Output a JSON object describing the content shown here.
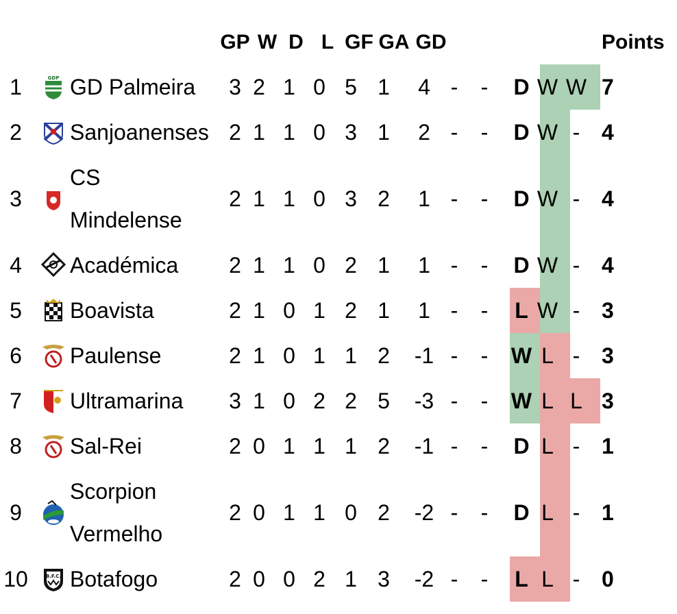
{
  "colors": {
    "win": "#acd1b4",
    "loss": "#eaa9a6"
  },
  "headers": {
    "gp": "GP",
    "w": "W",
    "d": "D",
    "l": "L",
    "gf": "GF",
    "ga": "GA",
    "gd": "GD",
    "points": "Points"
  },
  "rows": [
    {
      "pos": "1",
      "team": [
        "GD Palmeira"
      ],
      "logo": "gd-palmeira-crest-icon",
      "gp": "3",
      "w": "2",
      "d": "1",
      "l": "0",
      "gf": "5",
      "ga": "1",
      "gd": "4",
      "c1": "-",
      "c2": "-",
      "r1": "D",
      "r2": "W",
      "r3": "W",
      "pts": "7"
    },
    {
      "pos": "2",
      "team": [
        "Sanjoanenses"
      ],
      "logo": "sanjoanenses-crest-icon",
      "gp": "2",
      "w": "1",
      "d": "1",
      "l": "0",
      "gf": "3",
      "ga": "1",
      "gd": "2",
      "c1": "-",
      "c2": "-",
      "r1": "D",
      "r2": "W",
      "r3": "-",
      "pts": "4"
    },
    {
      "pos": "3",
      "team": [
        "CS",
        "Mindelense"
      ],
      "logo": "cs-mindelense-crest-icon",
      "gp": "2",
      "w": "1",
      "d": "1",
      "l": "0",
      "gf": "3",
      "ga": "2",
      "gd": "1",
      "c1": "-",
      "c2": "-",
      "r1": "D",
      "r2": "W",
      "r3": "-",
      "pts": "4"
    },
    {
      "pos": "4",
      "team": [
        "Académica"
      ],
      "logo": "academica-crest-icon",
      "gp": "2",
      "w": "1",
      "d": "1",
      "l": "0",
      "gf": "2",
      "ga": "1",
      "gd": "1",
      "c1": "-",
      "c2": "-",
      "r1": "D",
      "r2": "W",
      "r3": "-",
      "pts": "4"
    },
    {
      "pos": "5",
      "team": [
        "Boavista"
      ],
      "logo": "boavista-crest-icon",
      "gp": "2",
      "w": "1",
      "d": "0",
      "l": "1",
      "gf": "2",
      "ga": "1",
      "gd": "1",
      "c1": "-",
      "c2": "-",
      "r1": "L",
      "r2": "W",
      "r3": "-",
      "pts": "3"
    },
    {
      "pos": "6",
      "team": [
        "Paulense"
      ],
      "logo": "paulense-crest-icon",
      "gp": "2",
      "w": "1",
      "d": "0",
      "l": "1",
      "gf": "1",
      "ga": "2",
      "gd": "-1",
      "c1": "-",
      "c2": "-",
      "r1": "W",
      "r2": "L",
      "r3": "-",
      "pts": "3"
    },
    {
      "pos": "7",
      "team": [
        "Ultramarina"
      ],
      "logo": "ultramarina-crest-icon",
      "gp": "3",
      "w": "1",
      "d": "0",
      "l": "2",
      "gf": "2",
      "ga": "5",
      "gd": "-3",
      "c1": "-",
      "c2": "-",
      "r1": "W",
      "r2": "L",
      "r3": "L",
      "pts": "3"
    },
    {
      "pos": "8",
      "team": [
        "Sal-Rei"
      ],
      "logo": "sal-rei-crest-icon",
      "gp": "2",
      "w": "0",
      "d": "1",
      "l": "1",
      "gf": "1",
      "ga": "2",
      "gd": "-1",
      "c1": "-",
      "c2": "-",
      "r1": "D",
      "r2": "L",
      "r3": "-",
      "pts": "1"
    },
    {
      "pos": "9",
      "team": [
        "Scorpion",
        "Vermelho"
      ],
      "logo": "scorpion-vermelho-crest-icon",
      "gp": "2",
      "w": "0",
      "d": "1",
      "l": "1",
      "gf": "0",
      "ga": "2",
      "gd": "-2",
      "c1": "-",
      "c2": "-",
      "r1": "D",
      "r2": "L",
      "r3": "-",
      "pts": "1"
    },
    {
      "pos": "10",
      "team": [
        "Botafogo"
      ],
      "logo": "botafogo-crest-icon",
      "gp": "2",
      "w": "0",
      "d": "0",
      "l": "2",
      "gf": "1",
      "ga": "3",
      "gd": "-2",
      "c1": "-",
      "c2": "-",
      "r1": "L",
      "r2": "L",
      "r3": "-",
      "pts": "0"
    }
  ]
}
